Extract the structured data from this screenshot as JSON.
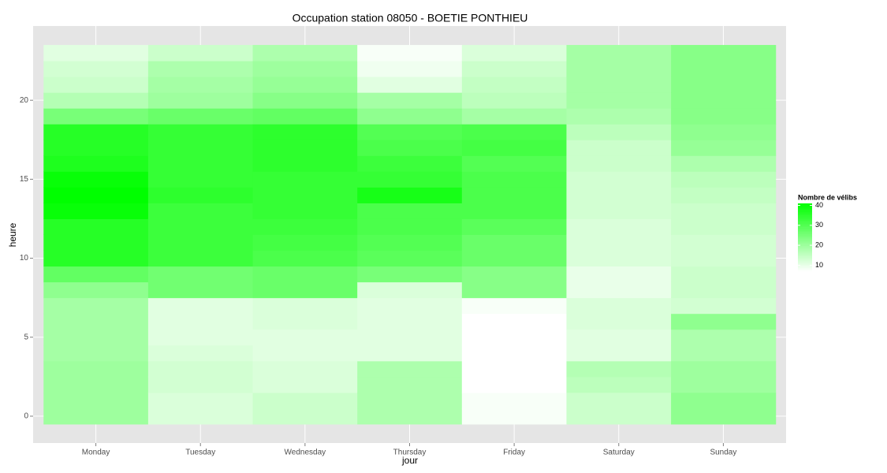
{
  "chart_data": {
    "type": "heatmap",
    "title": "Occupation station 08050 - BOETIE PONTHIEU",
    "x_label": "jour",
    "y_label": "heure",
    "categories": [
      "Monday",
      "Tuesday",
      "Wednesday",
      "Thursday",
      "Friday",
      "Saturday",
      "Sunday"
    ],
    "y": [
      0,
      1,
      2,
      3,
      4,
      5,
      6,
      7,
      8,
      9,
      10,
      11,
      12,
      13,
      14,
      15,
      16,
      17,
      18,
      19,
      20,
      21,
      22,
      23
    ],
    "values": [
      [
        20,
        20,
        20,
        20,
        19,
        19,
        19,
        19,
        22,
        28,
        36,
        36,
        36,
        40,
        41,
        40,
        37,
        36,
        36,
        25,
        17,
        14,
        13,
        11
      ],
      [
        12,
        12,
        13,
        13,
        12,
        11,
        11,
        11,
        26,
        26,
        33,
        33,
        33,
        33,
        35,
        34,
        34,
        34,
        34,
        27,
        20,
        19,
        18,
        14
      ],
      [
        14,
        14,
        12,
        12,
        11,
        11,
        12,
        12,
        27,
        27,
        31,
        32,
        33,
        34,
        34,
        34,
        35,
        35,
        35,
        28,
        23,
        21,
        20,
        18
      ],
      [
        18,
        18,
        18,
        18,
        11,
        11,
        11,
        11,
        12,
        25,
        29,
        30,
        31,
        31,
        38,
        34,
        33,
        31,
        30,
        22,
        19,
        11,
        9,
        8
      ],
      [
        8,
        8,
        7,
        7,
        7,
        7,
        7,
        8,
        23,
        23,
        27,
        27,
        29,
        31,
        31,
        31,
        30,
        32,
        31,
        19,
        16,
        15,
        14,
        12
      ],
      [
        14,
        14,
        16,
        17,
        11,
        11,
        12,
        12,
        10,
        10,
        12,
        12,
        12,
        13,
        13,
        13,
        14,
        14,
        16,
        18,
        19,
        19,
        19,
        19
      ],
      [
        22,
        22,
        20,
        20,
        18,
        18,
        22,
        13,
        14,
        14,
        13,
        13,
        14,
        14,
        15,
        16,
        18,
        21,
        22,
        23,
        23,
        23,
        23,
        23
      ]
    ],
    "ylim": [
      -1.7,
      24.7
    ],
    "yticks": [
      0,
      5,
      10,
      15,
      20
    ],
    "grid": true,
    "legend": {
      "title": "Nombre de vélibs",
      "range": [
        7,
        41
      ],
      "ticks": [
        10,
        20,
        30,
        40
      ],
      "low_color": "#ffffff",
      "high_color": "#00ff00"
    }
  }
}
